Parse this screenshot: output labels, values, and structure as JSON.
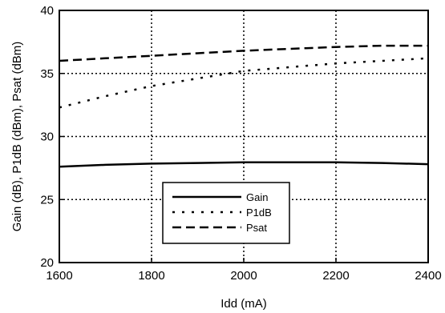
{
  "chart_data": {
    "type": "line",
    "xlabel": "Idd (mA)",
    "ylabel": "Gain (dB), P1dB (dBm), Psat (dBm)",
    "xlim": [
      1600,
      2400
    ],
    "ylim": [
      20,
      40
    ],
    "xticks": [
      1600,
      1800,
      2000,
      2200,
      2400
    ],
    "yticks": [
      20,
      25,
      30,
      35,
      40
    ],
    "x_tick_labels": [
      "1600",
      "1800",
      "2000",
      "2200",
      "2400"
    ],
    "y_tick_labels": [
      "20",
      "25",
      "30",
      "35",
      "40"
    ],
    "grid": "dotted",
    "legend_position": "lower-center",
    "x": [
      1600,
      1700,
      1800,
      1900,
      2000,
      2100,
      2200,
      2300,
      2400
    ],
    "series": [
      {
        "name": "Gain",
        "style": "solid",
        "values": [
          27.6,
          27.75,
          27.85,
          27.9,
          27.95,
          27.95,
          27.95,
          27.9,
          27.8
        ]
      },
      {
        "name": "P1dB",
        "style": "dotted",
        "values": [
          32.3,
          33.2,
          34.0,
          34.6,
          35.2,
          35.5,
          35.8,
          36.0,
          36.2
        ]
      },
      {
        "name": "Psat",
        "style": "dashed",
        "values": [
          36.0,
          36.2,
          36.4,
          36.6,
          36.8,
          36.95,
          37.1,
          37.2,
          37.2
        ]
      }
    ]
  }
}
